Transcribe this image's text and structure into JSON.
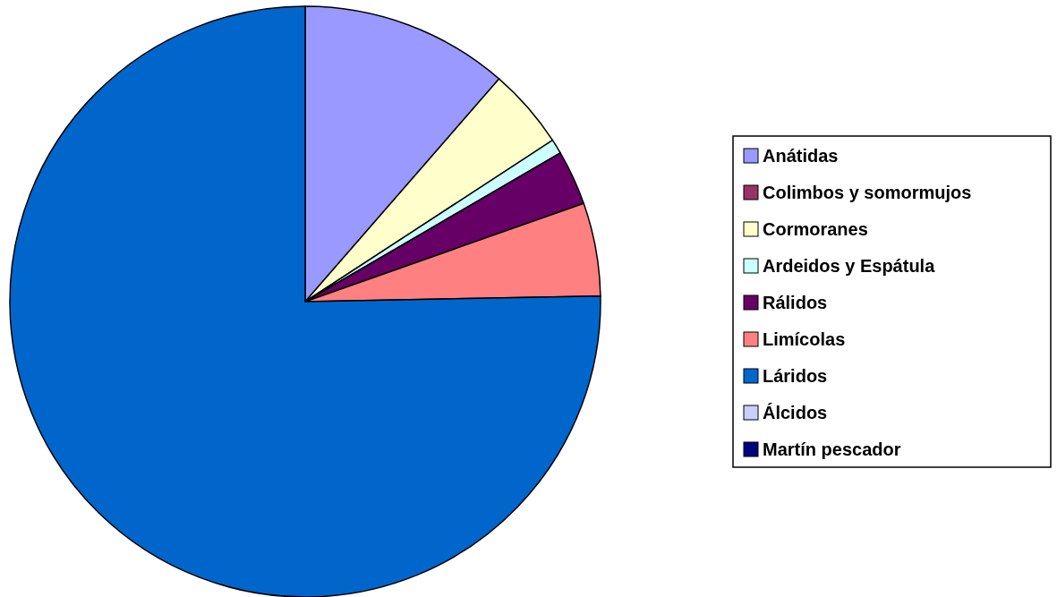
{
  "chart_data": {
    "type": "pie",
    "categories": [
      "Anátidas",
      "Colimbos y somormujos",
      "Cormoranes",
      "Ardeidos y Espátula",
      "Rálidos",
      "Limícolas",
      "Láridos",
      "Álcidos",
      "Martín pescador"
    ],
    "values": [
      11.4,
      0,
      4.4,
      0.8,
      3.0,
      5.1,
      75.3,
      0,
      0
    ],
    "colors": [
      "#9999ff",
      "#993366",
      "#ffffcc",
      "#ccffff",
      "#660066",
      "#ff8080",
      "#0066cc",
      "#ccccff",
      "#000080"
    ],
    "legend": "right"
  }
}
